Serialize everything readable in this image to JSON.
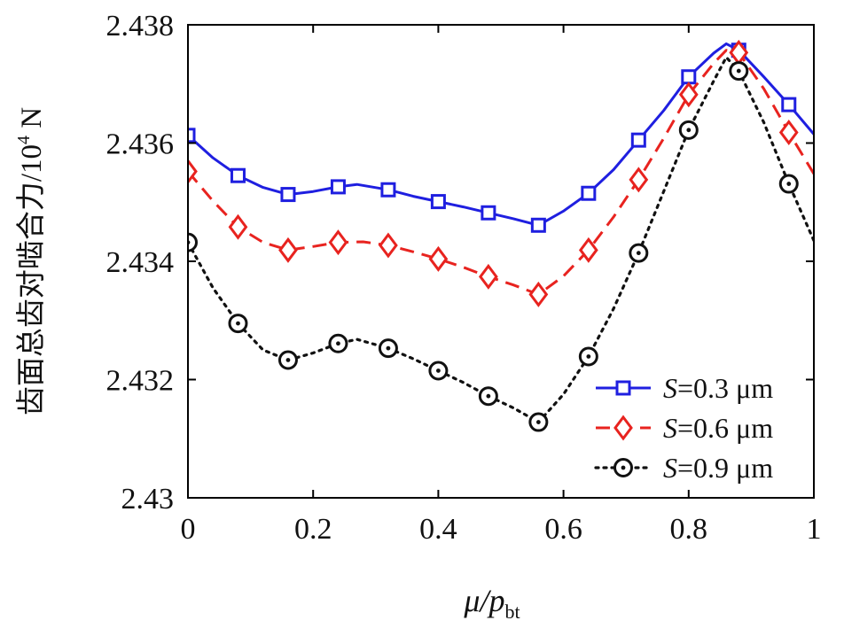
{
  "chart_data": {
    "type": "line",
    "xlabel": {
      "main": "μ/",
      "italic": "p",
      "sub": "bt"
    },
    "ylabel": {
      "main": "齿面总齿对啮合力/10",
      "sup": "4",
      "unit": " N"
    },
    "xlim": [
      0,
      1
    ],
    "ylim": [
      2.43,
      2.438
    ],
    "x_ticks": [
      0,
      0.2,
      0.4,
      0.6,
      0.8,
      1
    ],
    "x_tick_labels": [
      "0",
      "0.2",
      "0.4",
      "0.6",
      "0.8",
      "1"
    ],
    "y_ticks": [
      2.43,
      2.432,
      2.434,
      2.436,
      2.438
    ],
    "y_tick_labels": [
      "2.43",
      "2.432",
      "2.434",
      "2.436",
      "2.438"
    ],
    "grid": false,
    "legend_position": "bottom-right",
    "x": [
      0,
      0.08,
      0.16,
      0.24,
      0.32,
      0.4,
      0.48,
      0.56,
      0.64,
      0.72,
      0.8,
      0.88,
      0.96
    ],
    "series": [
      {
        "name": "S=0.3 μm",
        "label_italic": "S",
        "label_rest": "=0.3 μm",
        "color": "#1f1fe0",
        "line_style": "solid",
        "marker": "square",
        "values": [
          2.43613,
          2.43545,
          2.43513,
          2.43526,
          2.43521,
          2.43501,
          2.43482,
          2.43461,
          2.43515,
          2.43605,
          2.43712,
          2.43757,
          2.43665
        ],
        "curve_x": [
          0,
          0.04,
          0.08,
          0.12,
          0.16,
          0.2,
          0.24,
          0.27,
          0.32,
          0.36,
          0.4,
          0.44,
          0.48,
          0.52,
          0.56,
          0.6,
          0.64,
          0.68,
          0.72,
          0.76,
          0.8,
          0.84,
          0.86,
          0.88,
          0.92,
          0.96,
          1.0
        ],
        "curve_y": [
          2.43613,
          2.43575,
          2.43545,
          2.43525,
          2.43513,
          2.43518,
          2.43526,
          2.4353,
          2.43521,
          2.4351,
          2.43501,
          2.43492,
          2.43482,
          2.43472,
          2.43461,
          2.43485,
          2.43515,
          2.43555,
          2.43605,
          2.43655,
          2.43712,
          2.43752,
          2.43768,
          2.43757,
          2.43712,
          2.43665,
          2.43615
        ]
      },
      {
        "name": "S=0.6 μm",
        "label_italic": "S",
        "label_rest": "=0.6 μm",
        "color": "#e8231f",
        "line_style": "dashed",
        "marker": "diamond",
        "values": [
          2.43552,
          2.43458,
          2.43419,
          2.43432,
          2.43427,
          2.43404,
          2.43374,
          2.43344,
          2.43419,
          2.43538,
          2.43682,
          2.43753,
          2.43618
        ],
        "curve_x": [
          0,
          0.04,
          0.08,
          0.12,
          0.16,
          0.2,
          0.24,
          0.28,
          0.32,
          0.36,
          0.4,
          0.44,
          0.48,
          0.52,
          0.56,
          0.6,
          0.64,
          0.68,
          0.72,
          0.76,
          0.8,
          0.84,
          0.86,
          0.88,
          0.92,
          0.96,
          1.0
        ],
        "curve_y": [
          2.43552,
          2.43502,
          2.43458,
          2.43432,
          2.43419,
          2.43425,
          2.43432,
          2.43433,
          2.43427,
          2.43416,
          2.43404,
          2.4339,
          2.43374,
          2.4336,
          2.43344,
          2.43375,
          2.43419,
          2.43475,
          2.43538,
          2.43608,
          2.43682,
          2.43735,
          2.43757,
          2.43753,
          2.43692,
          2.43618,
          2.43548
        ]
      },
      {
        "name": "S=0.9 μm",
        "label_italic": "S",
        "label_rest": "=0.9 μm",
        "color": "#111111",
        "line_style": "dotted",
        "marker": "circle",
        "values": [
          2.43432,
          2.43295,
          2.43233,
          2.43261,
          2.43253,
          2.43215,
          2.43172,
          2.43128,
          2.43239,
          2.43414,
          2.43622,
          2.43722,
          2.43531
        ],
        "curve_x": [
          0,
          0.04,
          0.08,
          0.12,
          0.16,
          0.2,
          0.24,
          0.27,
          0.32,
          0.36,
          0.4,
          0.44,
          0.48,
          0.52,
          0.56,
          0.6,
          0.64,
          0.68,
          0.72,
          0.76,
          0.8,
          0.84,
          0.86,
          0.88,
          0.92,
          0.96,
          1.0
        ],
        "curve_y": [
          2.43432,
          2.43355,
          2.43295,
          2.4325,
          2.43233,
          2.43245,
          2.43261,
          2.43268,
          2.43253,
          2.43235,
          2.43215,
          2.43195,
          2.43172,
          2.43152,
          2.43128,
          2.43175,
          2.43239,
          2.4332,
          2.43414,
          2.43518,
          2.43622,
          2.43705,
          2.43745,
          2.43722,
          2.43635,
          2.43531,
          2.43435
        ]
      }
    ]
  }
}
